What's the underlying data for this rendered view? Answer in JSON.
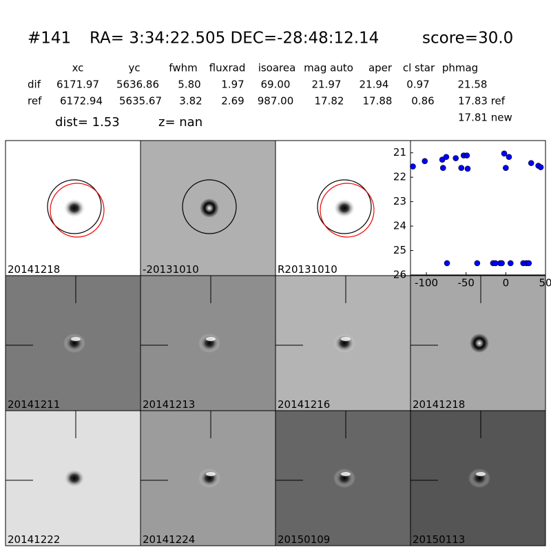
{
  "header": {
    "id": "#141",
    "coords": "RA= 3:34:22.505 DEC=-28:48:12.14",
    "score": "score=30.0"
  },
  "table": {
    "columns": [
      "xc",
      "yc",
      "fwhm",
      "fluxrad",
      "isoarea",
      "mag auto",
      "aper",
      "cl star",
      "phmag"
    ],
    "rows": [
      [
        "dif",
        "6171.97",
        "5636.86",
        "5.80",
        "1.97",
        "69.00",
        "21.97",
        "21.94",
        "0.97",
        "21.58"
      ],
      [
        "ref",
        "6172.94",
        "5635.67",
        "3.82",
        "2.69",
        "987.00",
        "17.82",
        "17.88",
        "0.86",
        "17.83 ref"
      ]
    ],
    "extra": "17.81 new",
    "dist": "dist=  1.53",
    "z": "z=   nan"
  },
  "panels": [
    {
      "label": "20141218"
    },
    {
      "label": "-20131010"
    },
    {
      "label": "R20131010"
    },
    {
      "label": "20141211"
    },
    {
      "label": "20141213"
    },
    {
      "label": "20141216"
    },
    {
      "label": "20141218",
      "label_color": "#ff0000"
    },
    {
      "label": "20141222"
    },
    {
      "label": "20141224"
    },
    {
      "label": "20150109"
    },
    {
      "label": "20150113"
    }
  ],
  "chart_data": {
    "type": "scatter",
    "color": "#0000ff",
    "x": [
      -117,
      -102,
      -80,
      -75,
      -79,
      -63,
      -56,
      -53,
      -49,
      -48,
      -2,
      0,
      4,
      32,
      41,
      44,
      -74,
      -36,
      -16,
      -13,
      -7,
      -5,
      6,
      22,
      26,
      29
    ],
    "values": [
      21.56,
      21.34,
      21.28,
      21.17,
      21.62,
      21.22,
      21.62,
      21.11,
      21.11,
      21.65,
      21.03,
      21.62,
      21.17,
      21.42,
      21.53,
      21.59,
      25.52,
      25.52,
      25.52,
      25.52,
      25.52,
      25.52,
      25.52,
      25.52,
      25.52,
      25.52
    ],
    "xlim": [
      -120,
      50
    ],
    "ylim": [
      26,
      20.5
    ],
    "xticks": [
      -100,
      -50,
      0,
      50
    ],
    "yticks": [
      21,
      22,
      23,
      24,
      25,
      26
    ]
  }
}
